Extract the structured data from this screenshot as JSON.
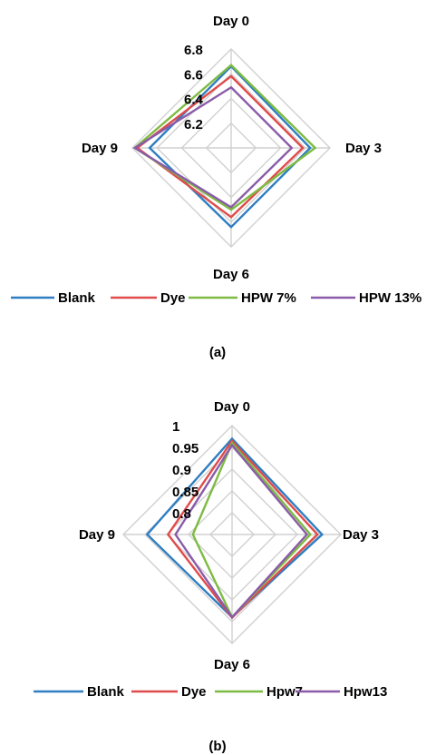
{
  "chart_data": [
    {
      "type": "radar",
      "panel_label": "(a)",
      "axes": [
        "Day 0",
        "Day 3",
        "Day 6",
        "Day 9"
      ],
      "range": [
        6.0,
        6.8
      ],
      "ticks": [
        "6.2",
        "6.4",
        "6.6",
        "6.8"
      ],
      "tick_values": [
        6.2,
        6.4,
        6.6,
        6.8
      ],
      "legend_position": "bottom",
      "series": [
        {
          "name": "Blank",
          "color": "#2E7EC1",
          "values": [
            6.66,
            6.64,
            6.64,
            6.66
          ]
        },
        {
          "name": "Dye",
          "color": "#E04B4B",
          "values": [
            6.58,
            6.58,
            6.56,
            6.76
          ]
        },
        {
          "name": "HPW 7%",
          "color": "#7DBB42",
          "values": [
            6.67,
            6.68,
            6.5,
            6.78
          ]
        },
        {
          "name": "HPW 13%",
          "color": "#8A5BA8",
          "values": [
            6.49,
            6.49,
            6.48,
            6.78
          ]
        }
      ]
    },
    {
      "type": "radar",
      "panel_label": "(b)",
      "axes": [
        "Day 0",
        "Day 3",
        "Day 6",
        "Day 9"
      ],
      "range": [
        0.75,
        1.0
      ],
      "ticks": [
        "0.8",
        "0.85",
        "0.9",
        "0.95",
        "1"
      ],
      "tick_values": [
        0.8,
        0.85,
        0.9,
        0.95,
        1.0
      ],
      "legend_position": "bottom",
      "series": [
        {
          "name": "Blank",
          "color": "#2E7EC1",
          "values": [
            0.97,
            0.957,
            0.94,
            0.945
          ]
        },
        {
          "name": "Dye",
          "color": "#E04B4B",
          "values": [
            0.965,
            0.946,
            0.941,
            0.897
          ]
        },
        {
          "name": "Hpw7",
          "color": "#7DBB42",
          "values": [
            0.96,
            0.93,
            0.94,
            0.84
          ]
        },
        {
          "name": "Hpw13",
          "color": "#8A5BA8",
          "values": [
            0.955,
            0.922,
            0.94,
            0.88
          ]
        }
      ]
    }
  ]
}
